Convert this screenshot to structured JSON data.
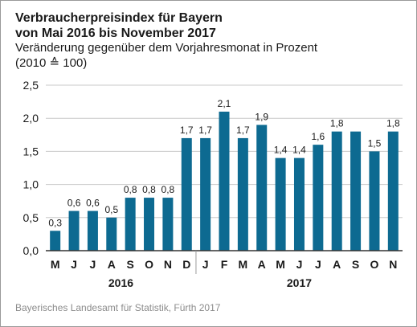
{
  "header": {
    "title_line1": "Verbraucherpreisindex für Bayern",
    "title_line2": "von Mai 2016 bis November 2017",
    "subtitle_line1": "Veränderung gegenüber dem Vorjahresmonat in Prozent",
    "subtitle_line2": "(2010 ≙ 100)"
  },
  "source": "Bayerisches Landesamt für Statistik, Fürth 2017",
  "colors": {
    "bar": "#0d6a91",
    "grid": "#c8c8c8",
    "axis": "#333333"
  },
  "chart_data": {
    "type": "bar",
    "categories": [
      "M",
      "J",
      "J",
      "A",
      "S",
      "O",
      "N",
      "D",
      "J",
      "F",
      "M",
      "A",
      "M",
      "J",
      "J",
      "A",
      "S",
      "O",
      "N"
    ],
    "values": [
      0.3,
      0.6,
      0.6,
      0.5,
      0.8,
      0.8,
      0.8,
      1.7,
      1.7,
      2.1,
      1.7,
      1.9,
      1.4,
      1.4,
      1.6,
      1.8,
      1.8,
      1.5,
      1.8
    ],
    "data_labels": [
      "0,3",
      "0,6",
      "0,6",
      "0,5",
      "0,8",
      "0,8",
      "0,8",
      "1,7",
      "1,7",
      "2,1",
      "1,7",
      "1,9",
      "1,4",
      "1,4",
      "1,6",
      "1,8",
      "",
      "1,5",
      "1,8"
    ],
    "year_groups": [
      {
        "label": "2016",
        "start_index": 0,
        "end_index": 7
      },
      {
        "label": "2017",
        "start_index": 8,
        "end_index": 18
      }
    ],
    "yticks": [
      0,
      0.5,
      1.0,
      1.5,
      2.0,
      2.5
    ],
    "ytick_labels": [
      "0,0",
      "0,5",
      "1,0",
      "1,5",
      "2,0",
      "2,5"
    ],
    "ylim": [
      0,
      2.5
    ],
    "grid": true
  }
}
